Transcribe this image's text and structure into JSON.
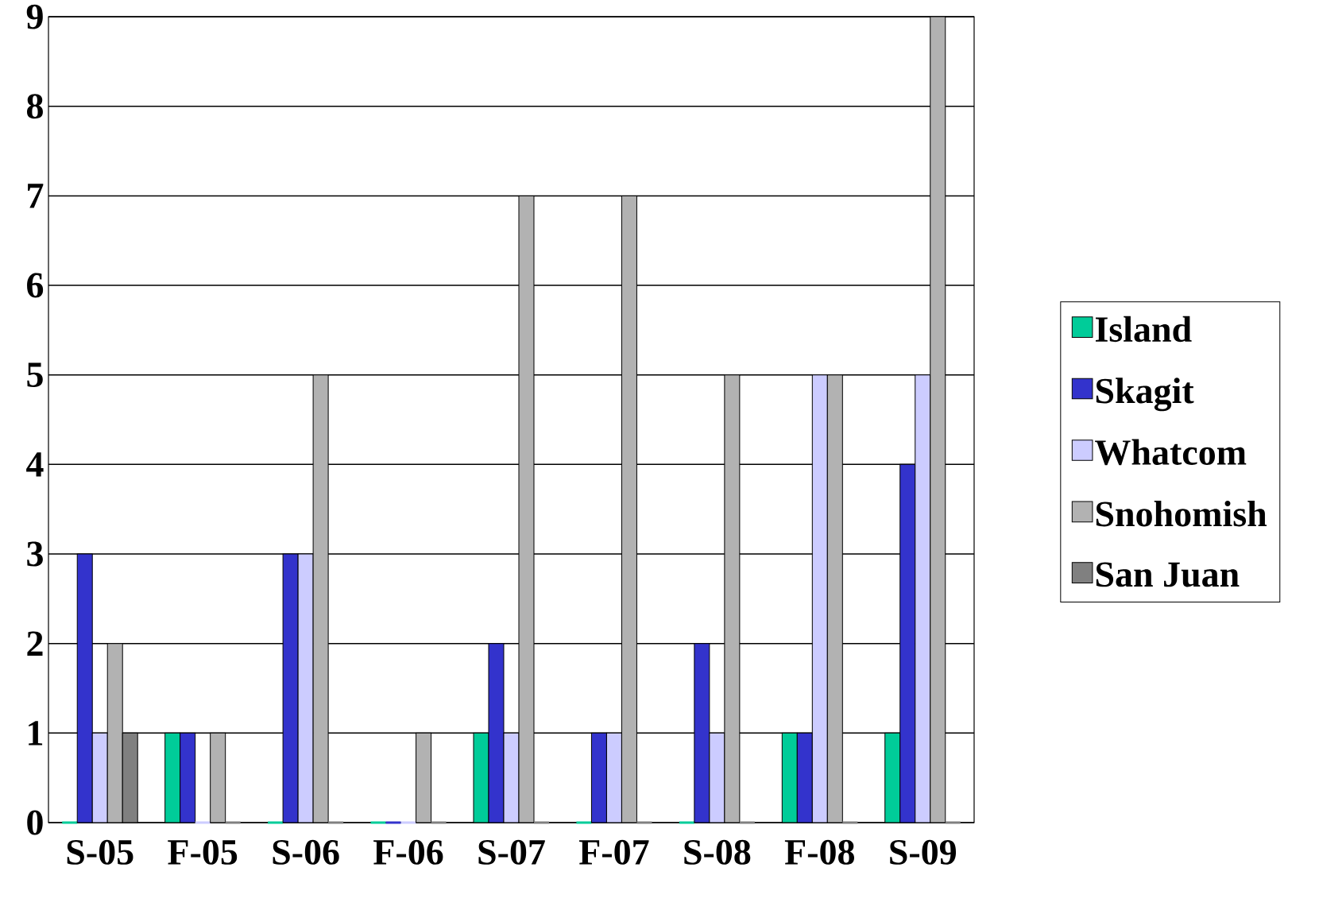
{
  "chart_data": {
    "type": "bar",
    "categories": [
      "S-05",
      "F-05",
      "S-06",
      "F-06",
      "S-07",
      "F-07",
      "S-08",
      "F-08",
      "S-09"
    ],
    "series": [
      {
        "name": "Island",
        "color": "#00cc99",
        "values": [
          0,
          1,
          0,
          0,
          1,
          0,
          0,
          1,
          1
        ]
      },
      {
        "name": "Skagit",
        "color": "#3333cc",
        "values": [
          3,
          1,
          3,
          0,
          2,
          1,
          2,
          1,
          4
        ]
      },
      {
        "name": "Whatcom",
        "color": "#ccccff",
        "values": [
          1,
          0,
          3,
          0,
          1,
          1,
          1,
          5,
          5
        ]
      },
      {
        "name": "Snohomish",
        "color": "#b2b2b2",
        "values": [
          2,
          1,
          5,
          1,
          7,
          7,
          5,
          5,
          9
        ]
      },
      {
        "name": "San Juan",
        "color": "#808080",
        "values": [
          1,
          0,
          0,
          0,
          0,
          0,
          0,
          0,
          0
        ]
      }
    ],
    "ylim": [
      0,
      9
    ],
    "yticks": [
      0,
      1,
      2,
      3,
      4,
      5,
      6,
      7,
      8,
      9
    ],
    "grid": "y",
    "legend": "right"
  }
}
